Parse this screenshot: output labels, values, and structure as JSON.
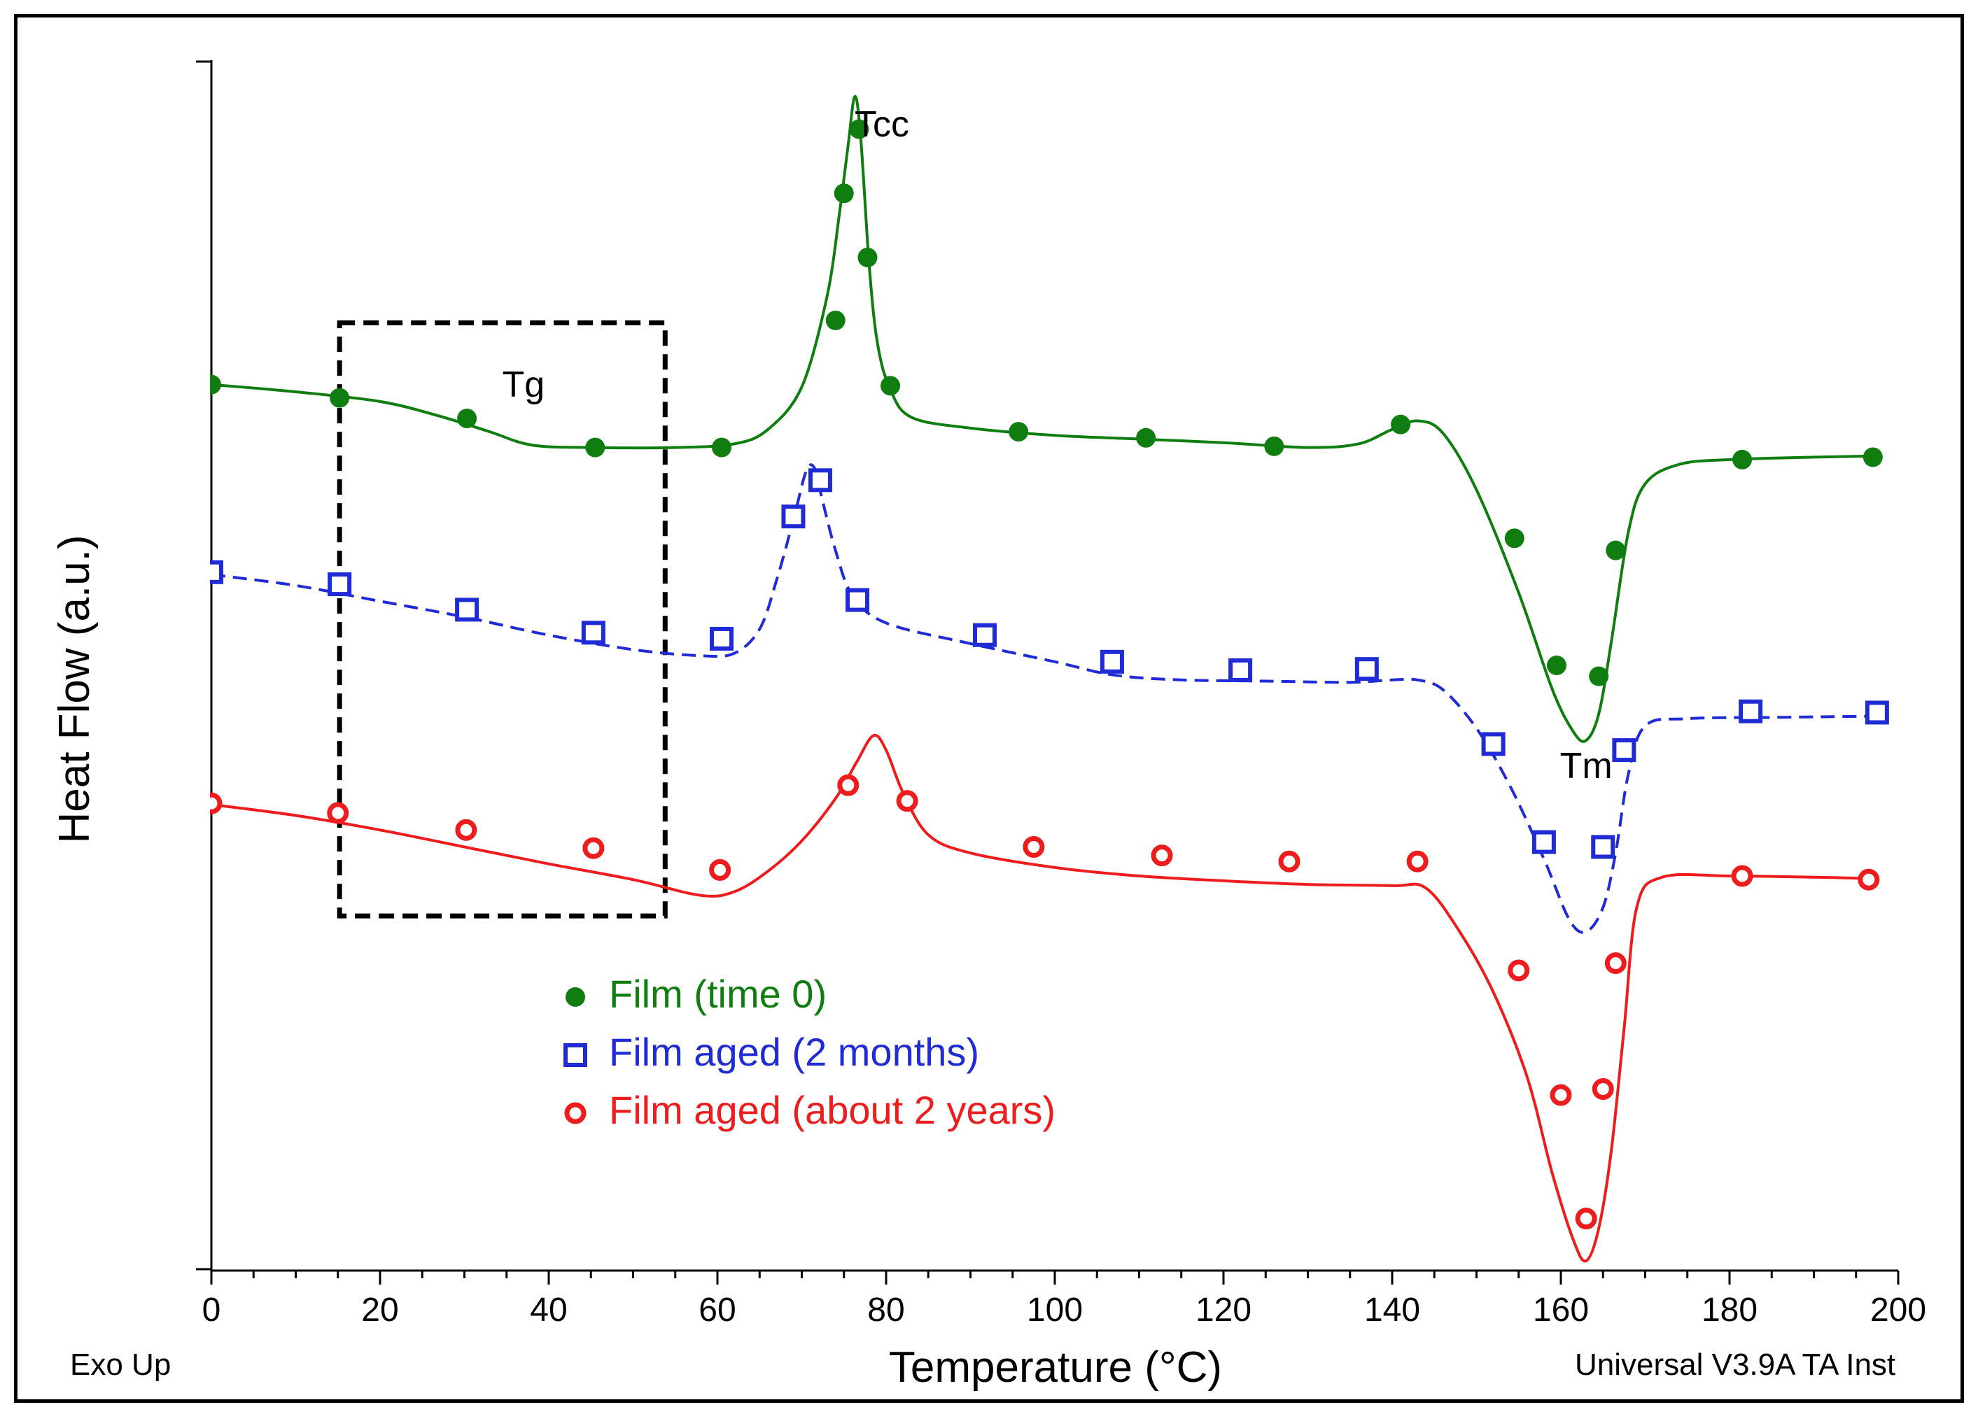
{
  "chart_data": {
    "type": "line",
    "title": "",
    "xlabel": "Temperature (°C)",
    "ylabel": "Heat Flow (a.u.)",
    "xlim": [
      0,
      200
    ],
    "ylim": [
      0,
      100
    ],
    "x_ticks": [
      "0",
      "20",
      "40",
      "60",
      "80",
      "100",
      "120",
      "140",
      "160",
      "180",
      "200"
    ],
    "grid": false,
    "legend_position": "bottom-center",
    "corner_labels": {
      "left": "Exo Up",
      "right": "Universal V3.9A TA Inst"
    },
    "annotations": [
      {
        "text": "Tcc",
        "x": 79.5,
        "y": 94.5
      },
      {
        "text": "Tg",
        "x": 37,
        "y": 73
      },
      {
        "text": "Tm",
        "x": 163,
        "y": 41.5
      }
    ],
    "tg_box": {
      "x": [
        15.2,
        53.8
      ],
      "y": [
        29.3,
        78.3
      ]
    },
    "series": [
      {
        "name": "Film (time 0)",
        "color": "#0f7d0f",
        "marker": "filled-circle",
        "line_style": "solid",
        "curve": [
          [
            0,
            73.2
          ],
          [
            10,
            72.6
          ],
          [
            20,
            71.8
          ],
          [
            27,
            70.6
          ],
          [
            33,
            69.3
          ],
          [
            38,
            68.2
          ],
          [
            45,
            68.0
          ],
          [
            55,
            68.0
          ],
          [
            62,
            68.3
          ],
          [
            66,
            69.5
          ],
          [
            70,
            73.0
          ],
          [
            73,
            80.5
          ],
          [
            74.5,
            87.5
          ],
          [
            75.5,
            93.0
          ],
          [
            76.3,
            97.0
          ],
          [
            77,
            93.5
          ],
          [
            78,
            83.0
          ],
          [
            79,
            76.5
          ],
          [
            80.5,
            72.8
          ],
          [
            83,
            70.5
          ],
          [
            90,
            69.6
          ],
          [
            100,
            69.0
          ],
          [
            110,
            68.7
          ],
          [
            120,
            68.4
          ],
          [
            130,
            68.0
          ],
          [
            136,
            68.3
          ],
          [
            140,
            69.5
          ],
          [
            143,
            70.2
          ],
          [
            146,
            69.2
          ],
          [
            150,
            64.5
          ],
          [
            155,
            56.0
          ],
          [
            159,
            48.0
          ],
          [
            161.5,
            44.5
          ],
          [
            163,
            43.8
          ],
          [
            164.5,
            46.0
          ],
          [
            166,
            52.0
          ],
          [
            168,
            61.0
          ],
          [
            170,
            65.0
          ],
          [
            174,
            66.6
          ],
          [
            180,
            67.0
          ],
          [
            190,
            67.2
          ],
          [
            197,
            67.3
          ]
        ],
        "markers": [
          [
            0,
            73.2
          ],
          [
            15.2,
            72.1
          ],
          [
            30.3,
            70.4
          ],
          [
            45.5,
            68.0
          ],
          [
            60.5,
            68.0
          ],
          [
            74,
            78.5
          ],
          [
            75,
            89.0
          ],
          [
            76.8,
            94.3
          ],
          [
            77.8,
            83.7
          ],
          [
            80.5,
            73.1
          ],
          [
            95.7,
            69.3
          ],
          [
            110.8,
            68.8
          ],
          [
            126,
            68.1
          ],
          [
            141,
            69.9
          ],
          [
            154.5,
            60.5
          ],
          [
            159.5,
            50.0
          ],
          [
            164.5,
            49.1
          ],
          [
            166.5,
            59.5
          ],
          [
            181.5,
            67.0
          ],
          [
            197,
            67.2
          ]
        ]
      },
      {
        "name": "Film aged (2 months)",
        "color": "#1f2bd4",
        "marker": "open-square",
        "line_style": "dashed",
        "curve": [
          [
            0,
            57.5
          ],
          [
            10,
            56.6
          ],
          [
            20,
            55.3
          ],
          [
            30,
            54.0
          ],
          [
            40,
            52.5
          ],
          [
            50,
            51.3
          ],
          [
            58,
            50.8
          ],
          [
            62,
            51.0
          ],
          [
            65,
            53.0
          ],
          [
            67,
            57.0
          ],
          [
            69,
            62.0
          ],
          [
            70.5,
            66.0
          ],
          [
            71.5,
            66.3
          ],
          [
            72.5,
            63.5
          ],
          [
            74,
            59.5
          ],
          [
            76,
            55.8
          ],
          [
            80,
            53.5
          ],
          [
            90,
            51.8
          ],
          [
            100,
            50.3
          ],
          [
            107,
            49.2
          ],
          [
            115,
            48.8
          ],
          [
            125,
            48.7
          ],
          [
            135,
            48.6
          ],
          [
            140,
            48.8
          ],
          [
            143,
            48.8
          ],
          [
            146,
            48.0
          ],
          [
            150,
            44.8
          ],
          [
            154,
            40.0
          ],
          [
            158,
            34.0
          ],
          [
            161,
            29.0
          ],
          [
            163,
            28.0
          ],
          [
            165,
            30.0
          ],
          [
            166.5,
            34.5
          ],
          [
            168,
            41.0
          ],
          [
            170,
            45.0
          ],
          [
            175,
            45.6
          ],
          [
            185,
            45.7
          ],
          [
            197,
            45.8
          ]
        ],
        "markers": [
          [
            0,
            57.7
          ],
          [
            15.2,
            56.7
          ],
          [
            30.3,
            54.6
          ],
          [
            45.3,
            52.7
          ],
          [
            60.5,
            52.2
          ],
          [
            69,
            62.3
          ],
          [
            72.2,
            65.3
          ],
          [
            76.6,
            55.4
          ],
          [
            91.7,
            52.5
          ],
          [
            106.8,
            50.3
          ],
          [
            122,
            49.6
          ],
          [
            137,
            49.7
          ],
          [
            152,
            43.5
          ],
          [
            158,
            35.4
          ],
          [
            165,
            35.0
          ],
          [
            167.5,
            43.0
          ],
          [
            182.5,
            46.2
          ],
          [
            197.5,
            46.1
          ]
        ]
      },
      {
        "name": "Film aged (about 2 years)",
        "color": "#ee1c1c",
        "marker": "open-circle",
        "line_style": "solid",
        "curve": [
          [
            0,
            38.5
          ],
          [
            10,
            37.6
          ],
          [
            20,
            36.4
          ],
          [
            30,
            35.0
          ],
          [
            40,
            33.6
          ],
          [
            50,
            32.3
          ],
          [
            58,
            31.0
          ],
          [
            62,
            31.3
          ],
          [
            66,
            33.0
          ],
          [
            70,
            35.5
          ],
          [
            74,
            39.0
          ],
          [
            76.5,
            42.0
          ],
          [
            78.5,
            44.2
          ],
          [
            80,
            43.0
          ],
          [
            82,
            39.5
          ],
          [
            85,
            36.0
          ],
          [
            90,
            34.5
          ],
          [
            100,
            33.3
          ],
          [
            110,
            32.6
          ],
          [
            120,
            32.2
          ],
          [
            130,
            31.9
          ],
          [
            140,
            31.8
          ],
          [
            144,
            31.6
          ],
          [
            148,
            28.0
          ],
          [
            152,
            23.0
          ],
          [
            156,
            16.0
          ],
          [
            159,
            8.0
          ],
          [
            161.5,
            2.5
          ],
          [
            163,
            0.8
          ],
          [
            164.5,
            3.5
          ],
          [
            166,
            10.0
          ],
          [
            167.5,
            20.0
          ],
          [
            169,
            30.0
          ],
          [
            172,
            32.5
          ],
          [
            180,
            32.6
          ],
          [
            190,
            32.5
          ],
          [
            196,
            32.4
          ]
        ],
        "markers": [
          [
            0,
            38.6
          ],
          [
            15,
            37.8
          ],
          [
            30.2,
            36.4
          ],
          [
            45.3,
            34.9
          ],
          [
            60.3,
            33.1
          ],
          [
            75.5,
            40.1
          ],
          [
            82.5,
            38.8
          ],
          [
            97.5,
            35.0
          ],
          [
            112.7,
            34.3
          ],
          [
            127.8,
            33.8
          ],
          [
            143,
            33.8
          ],
          [
            155,
            24.8
          ],
          [
            160,
            14.5
          ],
          [
            163,
            4.3
          ],
          [
            165,
            15.0
          ],
          [
            166.5,
            25.4
          ],
          [
            181.5,
            32.6
          ],
          [
            196.5,
            32.3
          ]
        ]
      }
    ]
  }
}
